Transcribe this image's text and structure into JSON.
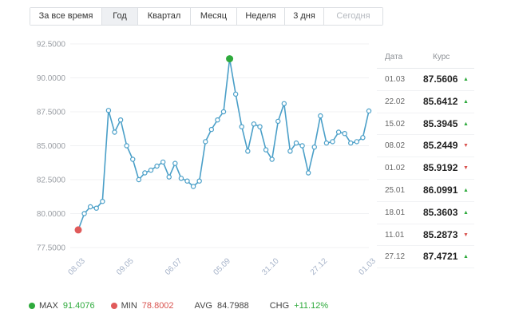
{
  "tabs": [
    {
      "label": "За все время",
      "active": false,
      "disabled": false
    },
    {
      "label": "Год",
      "active": true,
      "disabled": false
    },
    {
      "label": "Квартал",
      "active": false,
      "disabled": false
    },
    {
      "label": "Месяц",
      "active": false,
      "disabled": false
    },
    {
      "label": "Неделя",
      "active": false,
      "disabled": false
    },
    {
      "label": "3 дня",
      "active": false,
      "disabled": false
    },
    {
      "label": "Сегодня",
      "active": false,
      "disabled": true
    }
  ],
  "table": {
    "header_date": "Дата",
    "header_rate": "Курс",
    "rows": [
      {
        "date": "01.03",
        "value": "87.5606",
        "dir": "up"
      },
      {
        "date": "22.02",
        "value": "85.6412",
        "dir": "up"
      },
      {
        "date": "15.02",
        "value": "85.3945",
        "dir": "up"
      },
      {
        "date": "08.02",
        "value": "85.2449",
        "dir": "down"
      },
      {
        "date": "01.02",
        "value": "85.9192",
        "dir": "down"
      },
      {
        "date": "25.01",
        "value": "86.0991",
        "dir": "up"
      },
      {
        "date": "18.01",
        "value": "85.3603",
        "dir": "up"
      },
      {
        "date": "11.01",
        "value": "85.2873",
        "dir": "down"
      },
      {
        "date": "27.12",
        "value": "87.4721",
        "dir": "up"
      }
    ]
  },
  "stats": {
    "max_label": "MAX",
    "max_value": "91.4076",
    "min_label": "MIN",
    "min_value": "78.8002",
    "avg_label": "AVG",
    "avg_value": "84.7988",
    "chg_label": "CHG",
    "chg_value": "+11.12%"
  },
  "colors": {
    "line": "#4a9fc8",
    "max_dot": "#2eaa3c",
    "min_dot": "#e05a5a",
    "up": "#2eaa3c",
    "down": "#d9534f"
  },
  "chart_data": {
    "type": "line",
    "ylim": [
      77.5,
      92.5
    ],
    "y_ticks": [
      "92.5000",
      "90.0000",
      "87.5000",
      "85.0000",
      "82.5000",
      "80.0000",
      "77.5000"
    ],
    "x_ticks": [
      "08.03",
      "09.05",
      "06.07",
      "05.09",
      "31.10",
      "27.12",
      "01.03"
    ],
    "values": [
      78.8002,
      80.0,
      80.5,
      80.4,
      80.9,
      87.6,
      86.0,
      86.9,
      85.0,
      84.0,
      82.5,
      83.0,
      83.2,
      83.5,
      83.8,
      82.7,
      83.7,
      82.6,
      82.4,
      82.0,
      82.4,
      85.3,
      86.2,
      86.9,
      87.5,
      91.4076,
      88.8,
      86.4,
      84.6,
      86.6,
      86.4,
      84.7,
      84.0,
      86.8,
      88.1,
      84.6,
      85.2,
      85.0,
      83.0,
      84.9,
      87.2,
      85.2,
      85.3,
      86.0,
      85.9,
      85.2,
      85.3,
      85.6,
      87.5606
    ],
    "max_index": 25,
    "min_index": 0
  }
}
